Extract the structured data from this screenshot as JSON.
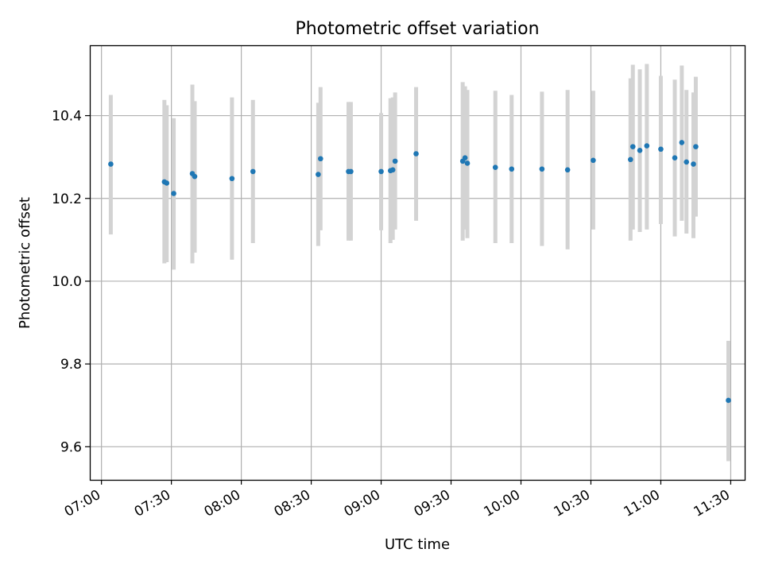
{
  "chart_data": {
    "type": "scatter",
    "title": "Photometric offset variation",
    "xlabel": "UTC time",
    "ylabel": "Photometric offset",
    "xlim": [
      "06:55",
      "11:36"
    ],
    "ylim": [
      9.52,
      10.57
    ],
    "xticks": [
      "07:00",
      "07:30",
      "08:00",
      "08:30",
      "09:00",
      "09:30",
      "10:00",
      "10:30",
      "11:00",
      "11:30"
    ],
    "yticks": [
      9.6,
      9.8,
      10.0,
      10.2,
      10.4
    ],
    "grid": true,
    "colors": {
      "point": "#1f77b4",
      "errorbar": "#d3d3d3",
      "grid": "#b0b0b0"
    },
    "points": [
      {
        "t": "07:04",
        "y": 10.283,
        "lo": 10.113,
        "hi": 10.45
      },
      {
        "t": "07:27",
        "y": 10.24,
        "lo": 10.043,
        "hi": 10.438
      },
      {
        "t": "07:28",
        "y": 10.237,
        "lo": 10.046,
        "hi": 10.425
      },
      {
        "t": "07:31",
        "y": 10.212,
        "lo": 10.028,
        "hi": 10.394
      },
      {
        "t": "07:39",
        "y": 10.26,
        "lo": 10.043,
        "hi": 10.475
      },
      {
        "t": "07:40",
        "y": 10.253,
        "lo": 10.069,
        "hi": 10.435
      },
      {
        "t": "07:56",
        "y": 10.248,
        "lo": 10.052,
        "hi": 10.444
      },
      {
        "t": "08:05",
        "y": 10.265,
        "lo": 10.092,
        "hi": 10.438
      },
      {
        "t": "08:33",
        "y": 10.258,
        "lo": 10.085,
        "hi": 10.431
      },
      {
        "t": "08:34",
        "y": 10.296,
        "lo": 10.123,
        "hi": 10.469
      },
      {
        "t": "08:46",
        "y": 10.265,
        "lo": 10.098,
        "hi": 10.433
      },
      {
        "t": "08:47",
        "y": 10.265,
        "lo": 10.098,
        "hi": 10.433
      },
      {
        "t": "09:00",
        "y": 10.265,
        "lo": 10.123,
        "hi": 10.406
      },
      {
        "t": "09:04",
        "y": 10.267,
        "lo": 10.092,
        "hi": 10.442
      },
      {
        "t": "09:05",
        "y": 10.269,
        "lo": 10.1,
        "hi": 10.444
      },
      {
        "t": "09:06",
        "y": 10.29,
        "lo": 10.125,
        "hi": 10.456
      },
      {
        "t": "09:15",
        "y": 10.308,
        "lo": 10.146,
        "hi": 10.469
      },
      {
        "t": "09:35",
        "y": 10.29,
        "lo": 10.098,
        "hi": 10.481
      },
      {
        "t": "09:36",
        "y": 10.298,
        "lo": 10.125,
        "hi": 10.471
      },
      {
        "t": "09:37",
        "y": 10.285,
        "lo": 10.104,
        "hi": 10.462
      },
      {
        "t": "09:49",
        "y": 10.275,
        "lo": 10.092,
        "hi": 10.46
      },
      {
        "t": "09:56",
        "y": 10.271,
        "lo": 10.092,
        "hi": 10.45
      },
      {
        "t": "10:09",
        "y": 10.271,
        "lo": 10.085,
        "hi": 10.458
      },
      {
        "t": "10:20",
        "y": 10.269,
        "lo": 10.077,
        "hi": 10.462
      },
      {
        "t": "10:31",
        "y": 10.292,
        "lo": 10.125,
        "hi": 10.46
      },
      {
        "t": "10:47",
        "y": 10.294,
        "lo": 10.098,
        "hi": 10.49
      },
      {
        "t": "10:48",
        "y": 10.325,
        "lo": 10.125,
        "hi": 10.523
      },
      {
        "t": "10:51",
        "y": 10.316,
        "lo": 10.119,
        "hi": 10.512
      },
      {
        "t": "10:54",
        "y": 10.327,
        "lo": 10.125,
        "hi": 10.525
      },
      {
        "t": "11:00",
        "y": 10.319,
        "lo": 10.138,
        "hi": 10.496
      },
      {
        "t": "11:06",
        "y": 10.298,
        "lo": 10.108,
        "hi": 10.487
      },
      {
        "t": "11:09",
        "y": 10.335,
        "lo": 10.146,
        "hi": 10.521
      },
      {
        "t": "11:11",
        "y": 10.288,
        "lo": 10.115,
        "hi": 10.462
      },
      {
        "t": "11:14",
        "y": 10.283,
        "lo": 10.104,
        "hi": 10.456
      },
      {
        "t": "11:15",
        "y": 10.325,
        "lo": 10.156,
        "hi": 10.494
      },
      {
        "t": "11:29",
        "y": 9.712,
        "lo": 9.565,
        "hi": 9.856
      }
    ]
  }
}
